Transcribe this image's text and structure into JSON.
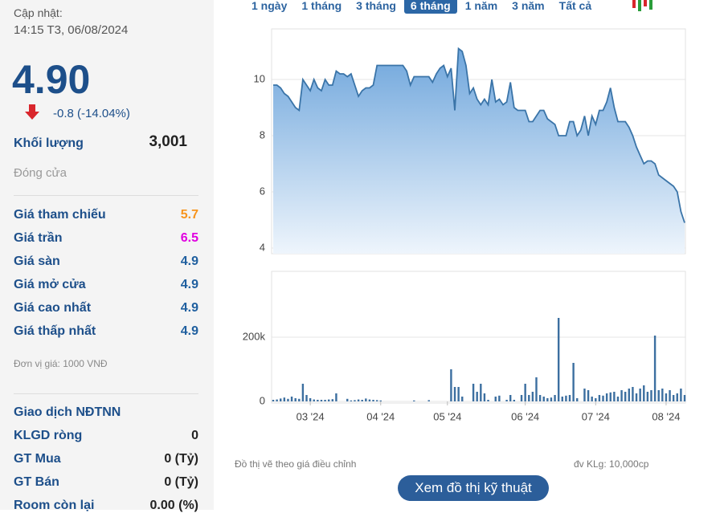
{
  "updated": {
    "label": "Cập nhật:",
    "time": "14:15 T3, 06/08/2024"
  },
  "price": "4.90",
  "change": "-0.8 (-14.04%)",
  "volume": {
    "label": "Khối lượng",
    "value": "3,001"
  },
  "status": "Đóng cửa",
  "price_rows": [
    {
      "label": "Giá tham chiếu",
      "value": "5.7",
      "color": "#f7941d"
    },
    {
      "label": "Giá trần",
      "value": "6.5",
      "color": "#e000e0"
    },
    {
      "label": "Giá sàn",
      "value": "4.9",
      "color": "#1f5f9f"
    },
    {
      "label": "Giá mở cửa",
      "value": "4.9",
      "color": "#1f5f9f"
    },
    {
      "label": "Giá cao nhất",
      "value": "4.9",
      "color": "#1f5f9f"
    },
    {
      "label": "Giá thấp nhất",
      "value": "4.9",
      "color": "#1f5f9f"
    }
  ],
  "unit_note": "Đơn vị giá: 1000 VNĐ",
  "foreign": {
    "title": "Giao dịch NĐTNN",
    "rows": [
      {
        "label": "KLGD ròng",
        "value": "0"
      },
      {
        "label": "GT Mua",
        "value": "0 (Tỷ)"
      },
      {
        "label": "GT Bán",
        "value": "0 (Tỷ)"
      },
      {
        "label": "Room còn lại",
        "value": "0.00 (%)"
      }
    ]
  },
  "range_buttons": [
    "1 ngày",
    "1 tháng",
    "3 tháng",
    "6 tháng",
    "1 năm",
    "3 năm",
    "Tất cả"
  ],
  "active_range": 3,
  "chart_data": [
    {
      "type": "area",
      "color": "#3a74a8",
      "ylim": [
        3.8,
        11.8
      ],
      "yticks": [
        4,
        6,
        8,
        10
      ],
      "grid": true,
      "values": [
        9.8,
        9.8,
        9.7,
        9.5,
        9.4,
        9.2,
        9.0,
        8.9,
        10.0,
        9.8,
        9.6,
        10.0,
        9.7,
        9.6,
        10.0,
        9.8,
        9.8,
        10.3,
        10.2,
        10.2,
        10.1,
        10.2,
        9.8,
        9.4,
        9.6,
        9.7,
        9.7,
        9.8,
        10.5,
        10.5,
        10.5,
        10.5,
        10.5,
        10.5,
        10.5,
        10.5,
        10.3,
        9.8,
        10.1,
        10.1,
        10.1,
        10.1,
        10.1,
        9.9,
        10.2,
        10.4,
        10.5,
        10.1,
        10.4,
        8.9,
        11.1,
        11.0,
        10.5,
        9.5,
        9.7,
        9.3,
        9.1,
        9.3,
        9.1,
        10.0,
        9.2,
        9.3,
        9.1,
        9.2,
        9.9,
        9.0,
        8.9,
        8.9,
        8.9,
        8.5,
        8.5,
        8.7,
        8.9,
        8.9,
        8.6,
        8.5,
        8.4,
        8.0,
        8.0,
        8.0,
        8.5,
        8.5,
        8.0,
        8.2,
        8.7,
        8.0,
        8.7,
        8.4,
        8.9,
        8.9,
        9.2,
        9.7,
        9.0,
        8.5,
        8.5,
        8.5,
        8.3,
        8.0,
        7.6,
        7.3,
        7.0,
        7.1,
        7.1,
        7.0,
        6.6,
        6.5,
        6.4,
        6.3,
        6.2,
        6.0,
        5.3,
        4.9
      ]
    },
    {
      "type": "bar",
      "color": "#3c6fa0",
      "ylim": [
        0,
        405000
      ],
      "yticks": [
        0,
        {
          "value": 200000,
          "label": "200k"
        }
      ],
      "grid": true,
      "categories": [
        null,
        null,
        null,
        null,
        null,
        null,
        null,
        null,
        null,
        null,
        "03 '24",
        null,
        null,
        null,
        null,
        null,
        null,
        null,
        null,
        null,
        null,
        null,
        null,
        null,
        null,
        null,
        null,
        null,
        null,
        "04 '24",
        null,
        null,
        null,
        null,
        null,
        null,
        null,
        null,
        null,
        null,
        null,
        null,
        null,
        null,
        null,
        null,
        null,
        "05 '24",
        null,
        null,
        null,
        null,
        null,
        null,
        null,
        null,
        null,
        null,
        null,
        null,
        null,
        null,
        null,
        null,
        null,
        null,
        null,
        null,
        "06 '24",
        null,
        null,
        null,
        null,
        null,
        null,
        null,
        null,
        null,
        null,
        null,
        null,
        null,
        null,
        null,
        null,
        null,
        null,
        "07 '24",
        null,
        null,
        null,
        null,
        null,
        null,
        null,
        null,
        null,
        null,
        null,
        null,
        null,
        null,
        null,
        null,
        null,
        null,
        "08 '24",
        null,
        null,
        null,
        null,
        null
      ],
      "values": [
        5000,
        6000,
        9000,
        12000,
        8000,
        15000,
        10000,
        8000,
        55000,
        20000,
        10000,
        6000,
        5000,
        5000,
        5000,
        6000,
        7000,
        25000,
        0,
        0,
        8000,
        3000,
        4000,
        6000,
        5000,
        9000,
        6000,
        5000,
        4000,
        3000,
        0,
        0,
        0,
        0,
        0,
        0,
        0,
        0,
        3000,
        0,
        0,
        0,
        4000,
        0,
        0,
        0,
        0,
        0,
        100000,
        45000,
        45000,
        15000,
        0,
        0,
        55000,
        30000,
        55000,
        25000,
        5000,
        0,
        15000,
        18000,
        0,
        5000,
        20000,
        5000,
        0,
        20000,
        55000,
        20000,
        30000,
        75000,
        20000,
        15000,
        10000,
        12000,
        20000,
        260000,
        15000,
        18000,
        20000,
        120000,
        10000,
        0,
        40000,
        35000,
        15000,
        10000,
        20000,
        18000,
        25000,
        28000,
        30000,
        15000,
        35000,
        30000,
        40000,
        45000,
        25000,
        40000,
        50000,
        30000,
        35000,
        205000,
        35000,
        40000,
        25000,
        35000,
        20000,
        25000,
        40000,
        20000
      ]
    }
  ],
  "footer": {
    "note": "Đồ thị vẽ theo giá điều chỉnh",
    "unit": "đv KLg: 10,000cp",
    "button": "Xem đồ thị kỹ thuật"
  }
}
